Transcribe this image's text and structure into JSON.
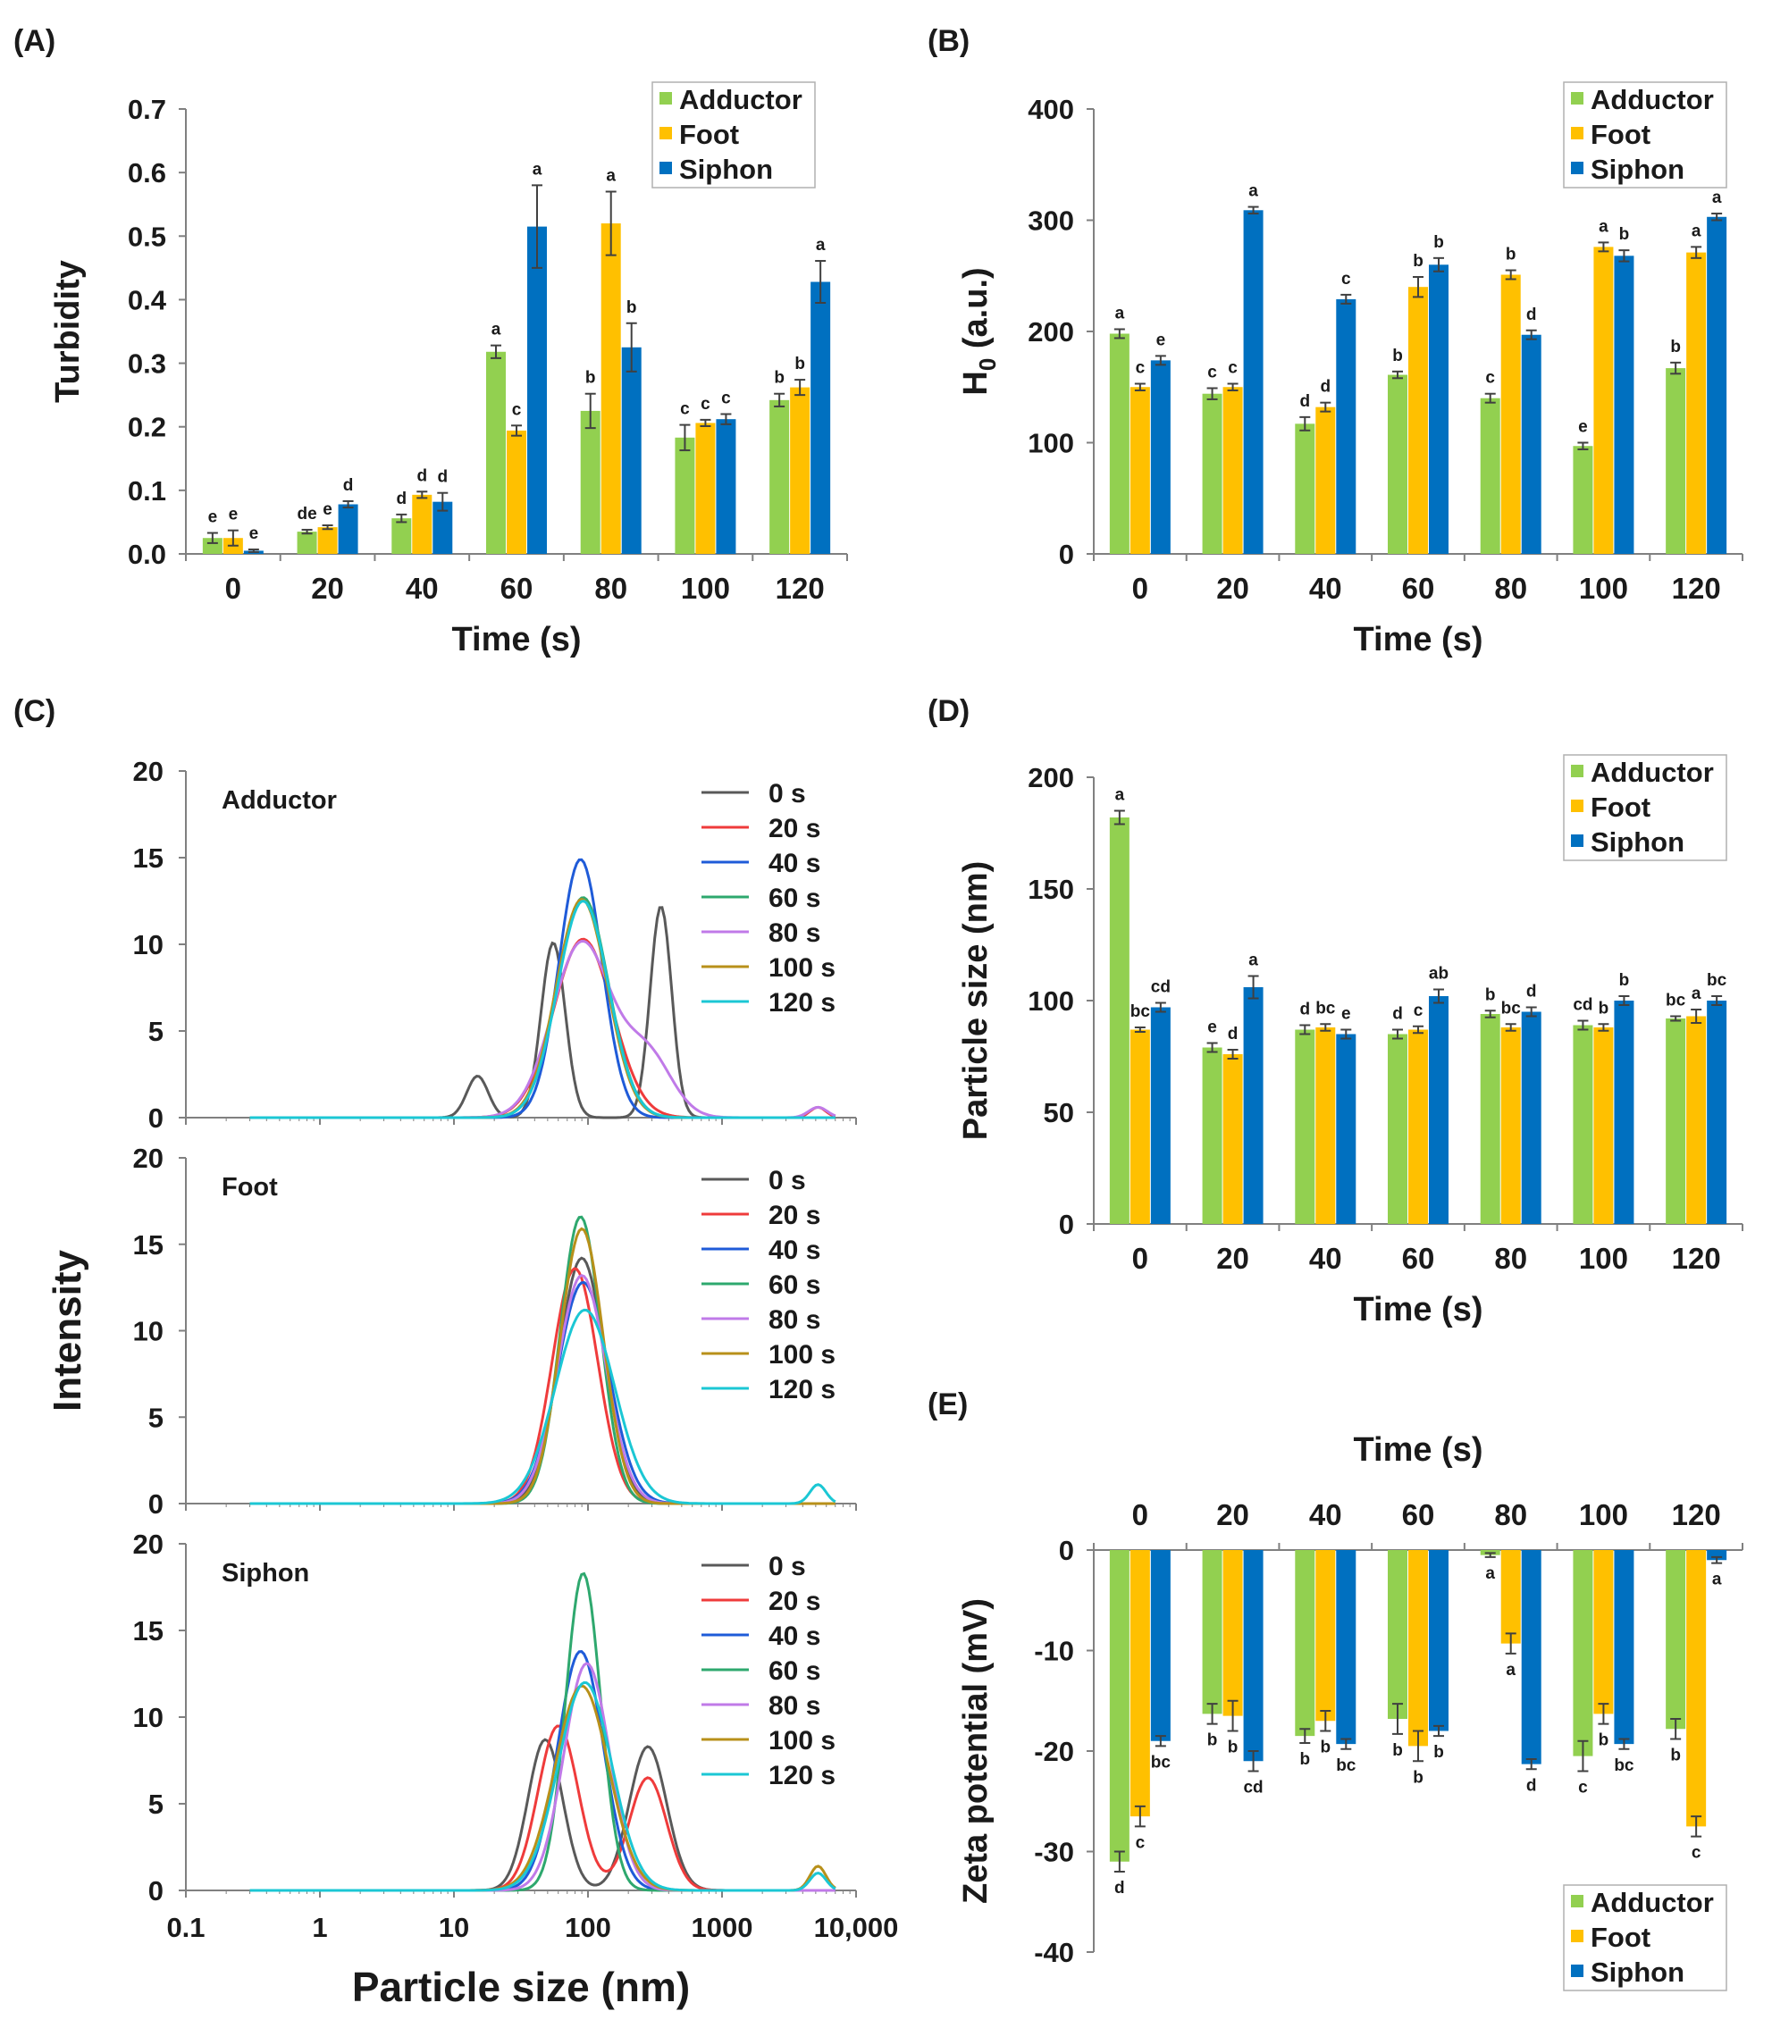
{
  "colors": {
    "Adductor": "#92d050",
    "Foot": "#ffc000",
    "Siphon": "#0070c0",
    "axis": "#808080",
    "error": "#404040"
  },
  "chart_data": [
    {
      "panel": "(A)",
      "type": "bar",
      "xlabel": "Time (s)",
      "ylabel": "Turbidity",
      "categories": [
        "0",
        "20",
        "40",
        "60",
        "80",
        "100",
        "120"
      ],
      "ylim": [
        0,
        0.7
      ],
      "yticks": [
        {
          "v": 0,
          "label": "0.0"
        },
        {
          "v": 0.1,
          "label": "0.1"
        },
        {
          "v": 0.2,
          "label": "0.2"
        },
        {
          "v": 0.3,
          "label": "0.3"
        },
        {
          "v": 0.4,
          "label": "0.4"
        },
        {
          "v": 0.5,
          "label": "0.5"
        },
        {
          "v": 0.6,
          "label": "0.6"
        },
        {
          "v": 0.7,
          "label": "0.7"
        }
      ],
      "legend": "top-right",
      "series": [
        {
          "name": "Adductor",
          "values": [
            0.025,
            0.035,
            0.056,
            0.318,
            0.225,
            0.183,
            0.242
          ],
          "errors": [
            0.008,
            0.003,
            0.006,
            0.01,
            0.027,
            0.02,
            0.01
          ],
          "letters": [
            "e",
            "de",
            "d",
            "a",
            "b",
            "c",
            "b"
          ]
        },
        {
          "name": "Foot",
          "values": [
            0.025,
            0.042,
            0.093,
            0.194,
            0.52,
            0.206,
            0.262
          ],
          "errors": [
            0.012,
            0.003,
            0.005,
            0.008,
            0.05,
            0.005,
            0.012
          ],
          "letters": [
            "e",
            "e",
            "d",
            "c",
            "a",
            "c",
            "b"
          ]
        },
        {
          "name": "Siphon",
          "values": [
            0.005,
            0.078,
            0.082,
            0.515,
            0.325,
            0.212,
            0.428
          ],
          "errors": [
            0.002,
            0.005,
            0.014,
            0.065,
            0.038,
            0.008,
            0.033
          ],
          "letters": [
            "e",
            "d",
            "d",
            "a",
            "b",
            "c",
            "a"
          ]
        }
      ]
    },
    {
      "panel": "(B)",
      "type": "bar",
      "xlabel": "Time (s)",
      "ylabel": "H",
      "ylabel_sub": "0",
      "ylabel_suffix": " (a.u.)",
      "categories": [
        "0",
        "20",
        "40",
        "60",
        "80",
        "100",
        "120"
      ],
      "ylim": [
        0,
        400
      ],
      "yticks": [
        {
          "v": 0,
          "label": "0"
        },
        {
          "v": 100,
          "label": "100"
        },
        {
          "v": 200,
          "label": "200"
        },
        {
          "v": 300,
          "label": "300"
        },
        {
          "v": 400,
          "label": "400"
        }
      ],
      "legend": "top-right",
      "series": [
        {
          "name": "Adductor",
          "values": [
            198,
            144,
            117,
            161,
            140,
            97,
            167
          ],
          "errors": [
            4,
            5,
            6,
            3,
            4,
            3,
            5
          ],
          "letters": [
            "a",
            "c",
            "d",
            "b",
            "c",
            "e",
            "b"
          ]
        },
        {
          "name": "Foot",
          "values": [
            150,
            150,
            132,
            240,
            251,
            276,
            271
          ],
          "errors": [
            3,
            3,
            4,
            9,
            4,
            4,
            5
          ],
          "letters": [
            "c",
            "c",
            "d",
            "b",
            "b",
            "a",
            "a"
          ]
        },
        {
          "name": "Siphon",
          "values": [
            174,
            309,
            229,
            260,
            197,
            268,
            303
          ],
          "errors": [
            4,
            3,
            4,
            6,
            4,
            5,
            3
          ],
          "letters": [
            "e",
            "a",
            "c",
            "b",
            "d",
            "b",
            "a"
          ]
        }
      ]
    },
    {
      "panel": "(C)",
      "type": "line",
      "xscale": "log",
      "xlabel": "Particle size (nm)",
      "ylabel": "Intensity",
      "xlim": [
        0.1,
        10000
      ],
      "xticks": [
        {
          "v": 0.1,
          "label": "0.1"
        },
        {
          "v": 1,
          "label": "1"
        },
        {
          "v": 10,
          "label": "10"
        },
        {
          "v": 100,
          "label": "100"
        },
        {
          "v": 1000,
          "label": "1000"
        },
        {
          "v": 10000,
          "label": "10,000"
        }
      ],
      "ylim": [
        0,
        20
      ],
      "yticks": [
        {
          "v": 0,
          "label": "0"
        },
        {
          "v": 5,
          "label": "5"
        },
        {
          "v": 10,
          "label": "10"
        },
        {
          "v": 15,
          "label": "15"
        },
        {
          "v": 20,
          "label": "20"
        }
      ],
      "line_colors": {
        "0 s": "#595959",
        "20 s": "#ef3b3b",
        "40 s": "#1f5bd8",
        "60 s": "#2ea86e",
        "80 s": "#c07ae8",
        "100 s": "#b8901a",
        "120 s": "#1bc7d4"
      },
      "subplots": [
        {
          "label": "Adductor",
          "series": [
            {
              "name": "0 s",
              "peaks": [
                [
                  15,
                  2.4,
                  0.08
                ],
                [
                  55,
                  10.1,
                  0.09
                ],
                [
                  350,
                  12.2,
                  0.08
                ]
              ]
            },
            {
              "name": "20 s",
              "peaks": [
                [
                  92,
                  10.3,
                  0.22
                ],
                [
                  5200,
                  0.6,
                  0.06
                ]
              ]
            },
            {
              "name": "40 s",
              "peaks": [
                [
                  88,
                  14.9,
                  0.16
                ]
              ]
            },
            {
              "name": "60 s",
              "peaks": [
                [
                  92,
                  12.7,
                  0.19
                ]
              ]
            },
            {
              "name": "80 s",
              "peaks": [
                [
                  90,
                  10.1,
                  0.22
                ],
                [
                  280,
                  3.5,
                  0.18
                ],
                [
                  5200,
                  0.6,
                  0.07
                ]
              ]
            },
            {
              "name": "100 s",
              "peaks": [
                [
                  90,
                  12.6,
                  0.19
                ]
              ]
            },
            {
              "name": "120 s",
              "peaks": [
                [
                  92,
                  12.5,
                  0.19
                ]
              ]
            }
          ]
        },
        {
          "label": "Foot",
          "series": [
            {
              "name": "0 s",
              "peaks": [
                [
                  90,
                  14.2,
                  0.17
                ]
              ]
            },
            {
              "name": "20 s",
              "peaks": [
                [
                  80,
                  13.6,
                  0.17
                ]
              ]
            },
            {
              "name": "40 s",
              "peaks": [
                [
                  92,
                  12.8,
                  0.19
                ]
              ]
            },
            {
              "name": "60 s",
              "peaks": [
                [
                  88,
                  16.6,
                  0.15
                ]
              ]
            },
            {
              "name": "80 s",
              "peaks": [
                [
                  90,
                  13.2,
                  0.18
                ]
              ]
            },
            {
              "name": "100 s",
              "peaks": [
                [
                  90,
                  15.9,
                  0.16
                ]
              ]
            },
            {
              "name": "120 s",
              "peaks": [
                [
                  95,
                  11.2,
                  0.22
                ],
                [
                  5200,
                  1.1,
                  0.06
                ]
              ]
            }
          ]
        },
        {
          "label": "Siphon",
          "series": [
            {
              "name": "0 s",
              "peaks": [
                [
                  48,
                  8.7,
                  0.13
                ],
                [
                  280,
                  8.3,
                  0.14
                ]
              ]
            },
            {
              "name": "20 s",
              "peaks": [
                [
                  60,
                  9.5,
                  0.15
                ],
                [
                  280,
                  6.5,
                  0.14
                ]
              ]
            },
            {
              "name": "40 s",
              "peaks": [
                [
                  88,
                  13.8,
                  0.17
                ]
              ]
            },
            {
              "name": "60 s",
              "peaks": [
                [
                  92,
                  18.3,
                  0.13
                ]
              ]
            },
            {
              "name": "80 s",
              "peaks": [
                [
                  98,
                  13.1,
                  0.17
                ]
              ]
            },
            {
              "name": "100 s",
              "peaks": [
                [
                  90,
                  11.8,
                  0.2
                ],
                [
                  5200,
                  1.4,
                  0.06
                ]
              ]
            },
            {
              "name": "120 s",
              "peaks": [
                [
                  95,
                  12.0,
                  0.2
                ],
                [
                  5200,
                  1.0,
                  0.06
                ]
              ]
            }
          ]
        }
      ]
    },
    {
      "panel": "(D)",
      "type": "bar",
      "xlabel": "Time (s)",
      "ylabel": "Particle size (nm)",
      "categories": [
        "0",
        "20",
        "40",
        "60",
        "80",
        "100",
        "120"
      ],
      "ylim": [
        0,
        200
      ],
      "yticks": [
        {
          "v": 0,
          "label": "0"
        },
        {
          "v": 50,
          "label": "50"
        },
        {
          "v": 100,
          "label": "100"
        },
        {
          "v": 150,
          "label": "150"
        },
        {
          "v": 200,
          "label": "200"
        }
      ],
      "legend": "top-right",
      "series": [
        {
          "name": "Adductor",
          "values": [
            182,
            79,
            87,
            85,
            94,
            89,
            92
          ],
          "errors": [
            3,
            2,
            2,
            2,
            1.5,
            2,
            1
          ],
          "letters": [
            "a",
            "e",
            "d",
            "d",
            "b",
            "cd",
            "bc"
          ]
        },
        {
          "name": "Foot",
          "values": [
            87,
            76,
            88,
            87,
            88,
            88,
            93
          ],
          "errors": [
            1,
            2,
            1.5,
            1.5,
            1.5,
            1.5,
            3
          ],
          "letters": [
            "bc",
            "d",
            "bc",
            "c",
            "bc",
            "b",
            "a"
          ]
        },
        {
          "name": "Siphon",
          "values": [
            97,
            106,
            85,
            102,
            95,
            100,
            100
          ],
          "errors": [
            2,
            5,
            2,
            3,
            2,
            2,
            2
          ],
          "letters": [
            "cd",
            "a",
            "e",
            "ab",
            "d",
            "b",
            "bc"
          ]
        }
      ]
    },
    {
      "panel": "(E)",
      "type": "bar",
      "xlabel": "Time (s)",
      "xaxis_position": "top",
      "ylabel": "Zeta potential (mV)",
      "categories": [
        "0",
        "20",
        "40",
        "60",
        "80",
        "100",
        "120"
      ],
      "ylim": [
        -40,
        0
      ],
      "yticks": [
        {
          "v": 0,
          "label": "0"
        },
        {
          "v": -10,
          "label": "-10"
        },
        {
          "v": -20,
          "label": "-20"
        },
        {
          "v": -30,
          "label": "-30"
        },
        {
          "v": -40,
          "label": "-40"
        }
      ],
      "legend": "bottom-right",
      "series": [
        {
          "name": "Adductor",
          "values": [
            -31,
            -16.3,
            -18.5,
            -16.8,
            -0.5,
            -20.5,
            -17.8
          ],
          "errors": [
            1.0,
            1.0,
            0.7,
            1.5,
            0.2,
            1.5,
            1.0
          ],
          "letters": [
            "d",
            "b",
            "b",
            "b",
            "a",
            "c",
            "b"
          ]
        },
        {
          "name": "Foot",
          "values": [
            -26.5,
            -16.5,
            -17,
            -19.5,
            -9.3,
            -16.3,
            -27.5
          ],
          "errors": [
            1.0,
            1.5,
            1.0,
            1.5,
            1.0,
            1.0,
            1.0
          ],
          "letters": [
            "c",
            "b",
            "b",
            "b",
            "a",
            "b",
            "c"
          ]
        },
        {
          "name": "Siphon",
          "values": [
            -19,
            -21,
            -19.3,
            -18,
            -21.3,
            -19.3,
            -1
          ],
          "errors": [
            0.5,
            1.0,
            0.5,
            0.5,
            0.5,
            0.5,
            0.3
          ],
          "letters": [
            "bc",
            "cd",
            "bc",
            "b",
            "d",
            "bc",
            "a"
          ]
        }
      ]
    }
  ]
}
